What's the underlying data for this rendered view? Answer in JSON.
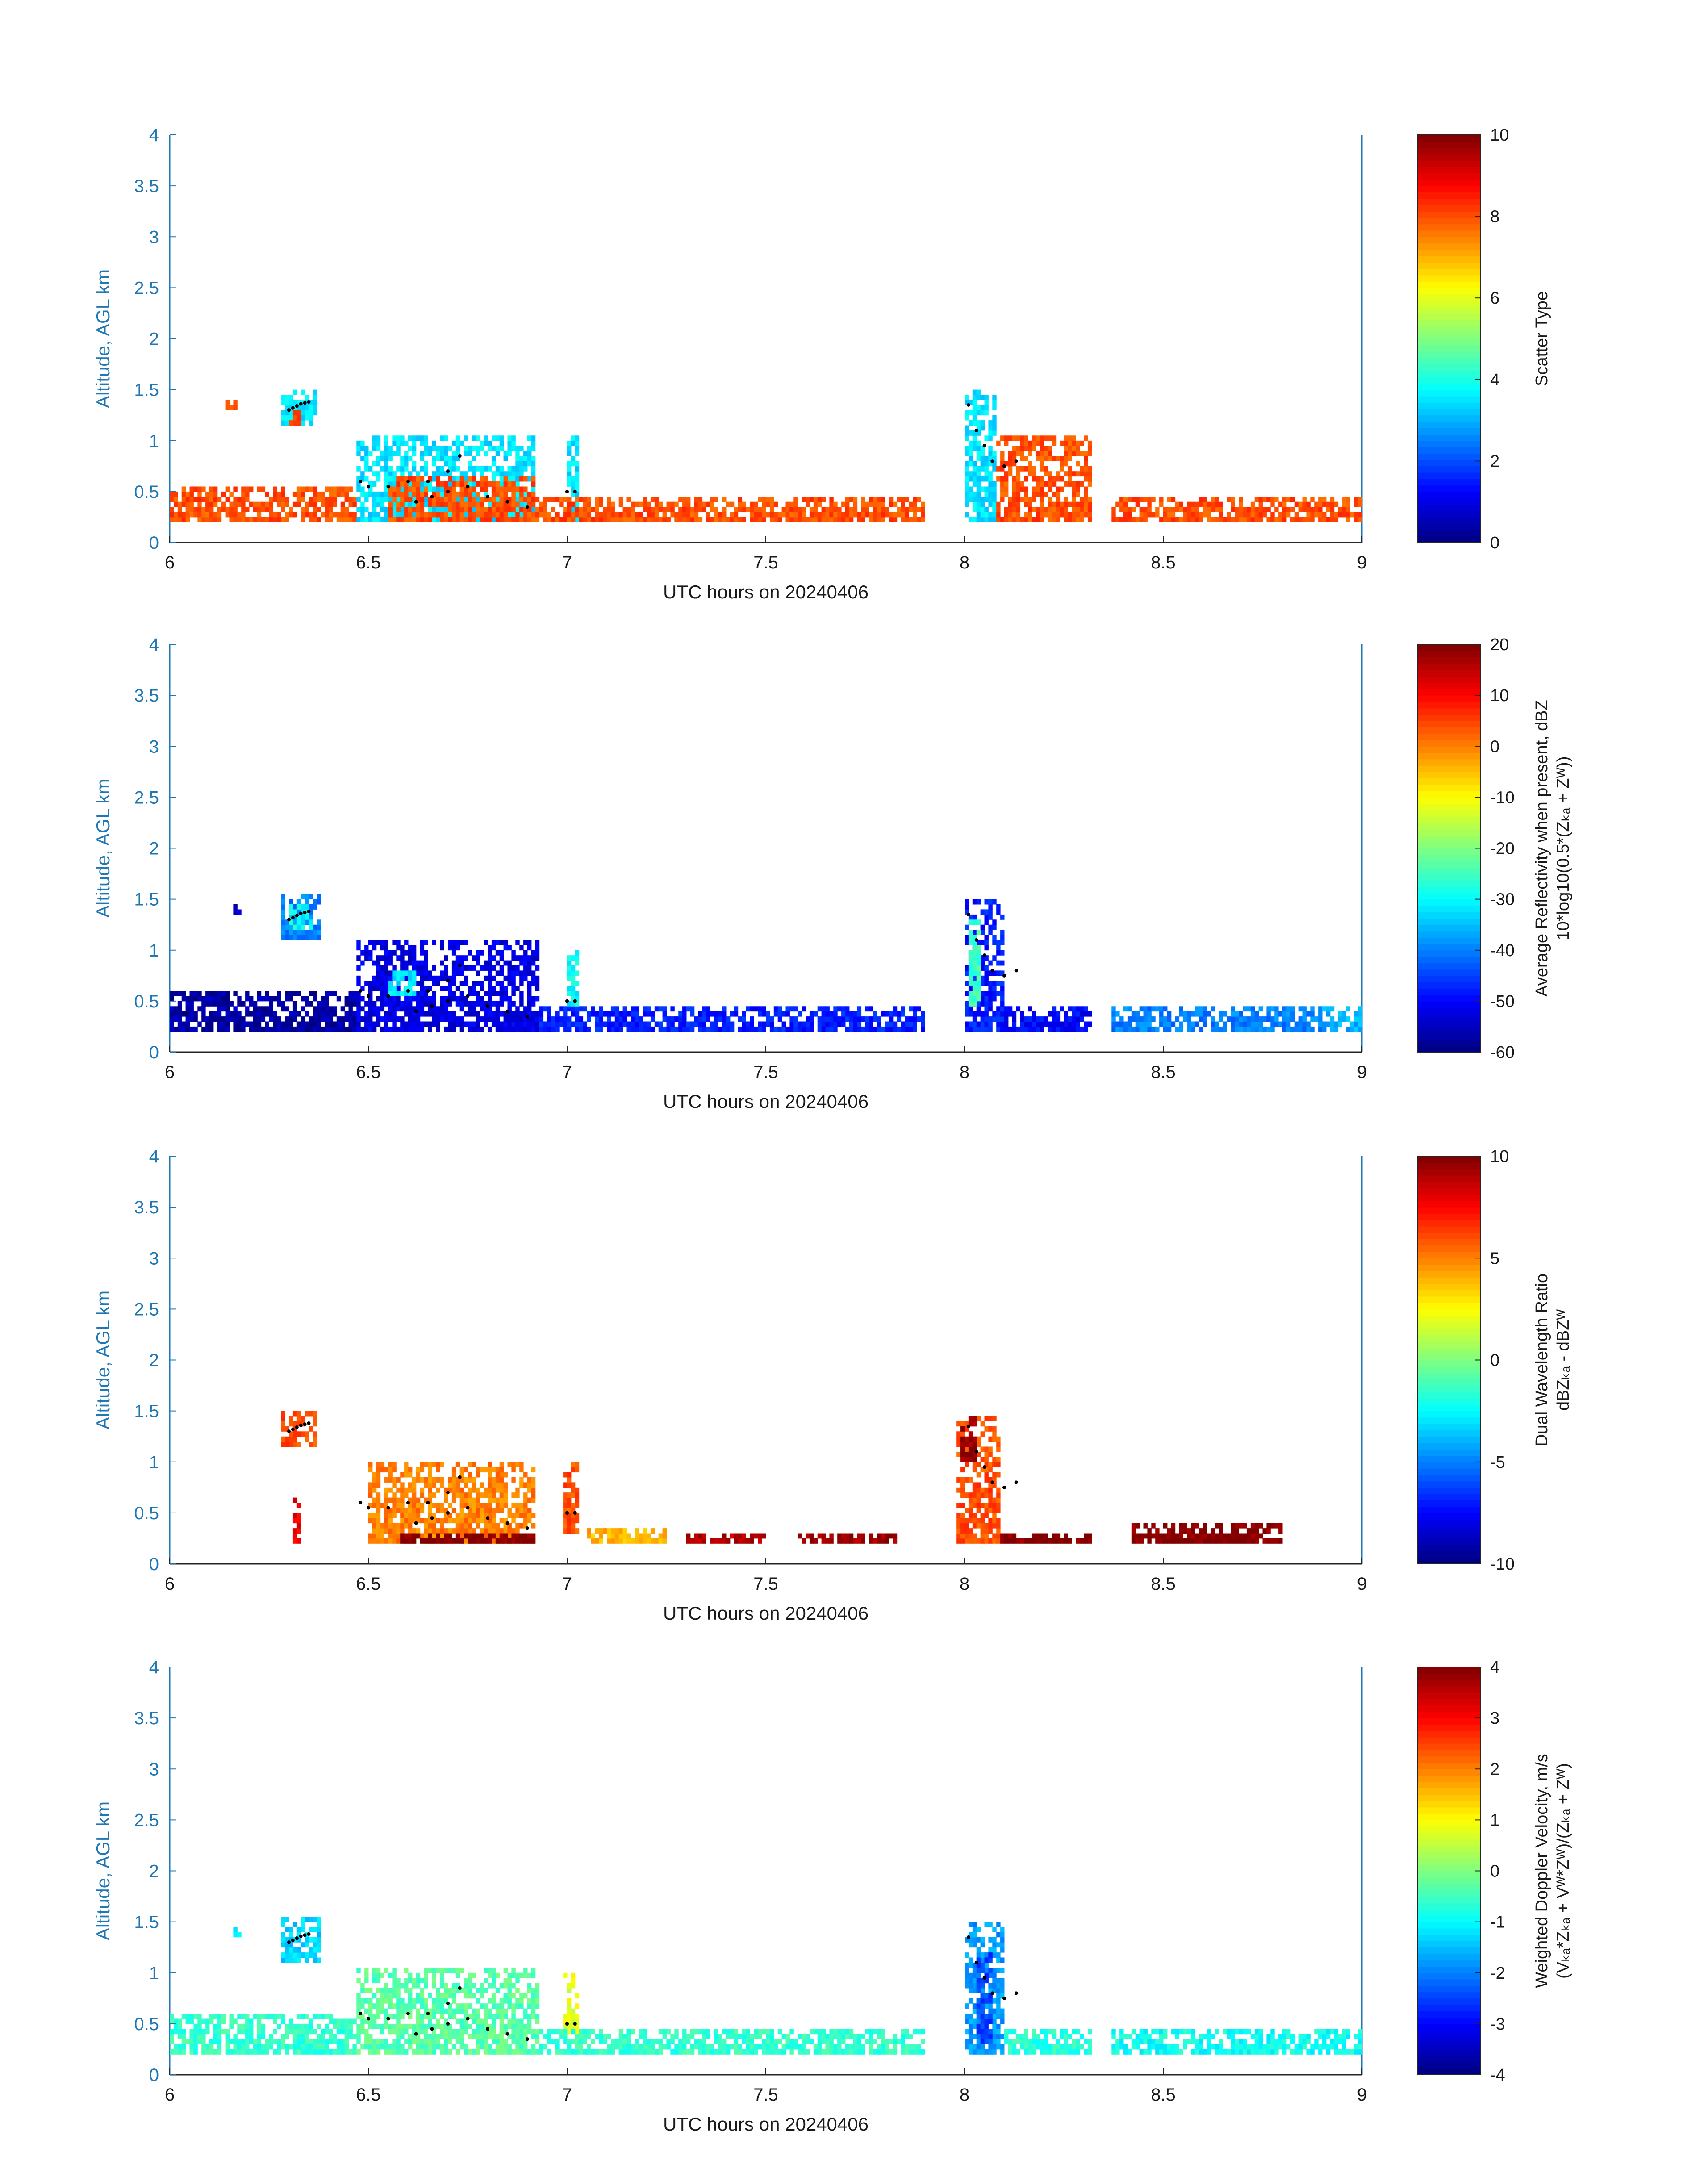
{
  "chart_data": [
    {
      "type": "heatmap",
      "title": "",
      "xlabel": "UTC hours on 20240406",
      "ylabel": "Altitude, AGL km",
      "xlim": [
        6,
        9
      ],
      "ylim": [
        0,
        4
      ],
      "xticks": [
        "6",
        "6.5",
        "7",
        "7.5",
        "8",
        "8.5",
        "9"
      ],
      "yticks": [
        "0",
        "0.5",
        "1",
        "1.5",
        "2",
        "2.5",
        "3",
        "3.5",
        "4"
      ],
      "colorbar": {
        "label_lines": [
          "Scatter Type"
        ],
        "min": 0,
        "max": 10,
        "ticks": [
          "0",
          "2",
          "4",
          "6",
          "8",
          "10"
        ]
      },
      "grid": false,
      "cells": [
        {
          "x": [
            6.0,
            6.47
          ],
          "y": [
            0.2,
            0.55
          ],
          "v": 8
        },
        {
          "x": [
            6.14,
            6.17
          ],
          "y": [
            1.3,
            1.4
          ],
          "v": 8
        },
        {
          "x": [
            6.28,
            6.37
          ],
          "y": [
            1.15,
            1.5
          ],
          "v": 3.5
        },
        {
          "x": [
            6.3,
            6.33
          ],
          "y": [
            1.15,
            1.3
          ],
          "v": 8
        },
        {
          "x": [
            6.47,
            6.92
          ],
          "y": [
            0.2,
            1.05
          ],
          "v": 3.5
        },
        {
          "x": [
            6.55,
            6.92
          ],
          "y": [
            0.2,
            0.65
          ],
          "v": 8
        },
        {
          "x": [
            7.0,
            7.03
          ],
          "y": [
            0.2,
            1.05
          ],
          "v": 3.5
        },
        {
          "x": [
            6.92,
            7.9
          ],
          "y": [
            0.2,
            0.45
          ],
          "v": 8
        },
        {
          "x": [
            8.0,
            8.08
          ],
          "y": [
            0.2,
            1.5
          ],
          "v": 3.5
        },
        {
          "x": [
            8.08,
            8.32
          ],
          "y": [
            0.2,
            1.05
          ],
          "v": 8
        },
        {
          "x": [
            8.37,
            9.0
          ],
          "y": [
            0.2,
            0.45
          ],
          "v": 8
        }
      ],
      "tracks": [
        {
          "x": [
            6.3,
            6.31,
            6.32,
            6.33,
            6.34,
            6.35
          ],
          "y": [
            1.3,
            1.32,
            1.34,
            1.36,
            1.37,
            1.38
          ]
        },
        {
          "x": [
            6.48,
            6.5,
            6.55,
            6.6,
            6.65,
            6.7,
            6.73
          ],
          "y": [
            0.6,
            0.55,
            0.55,
            0.6,
            0.6,
            0.7,
            0.85
          ]
        },
        {
          "x": [
            6.62,
            6.66,
            6.7,
            6.75,
            6.8,
            6.85,
            6.9
          ],
          "y": [
            0.4,
            0.45,
            0.5,
            0.55,
            0.45,
            0.4,
            0.35
          ]
        },
        {
          "x": [
            7.0,
            7.02
          ],
          "y": [
            0.5,
            0.5
          ]
        },
        {
          "x": [
            8.01,
            8.03,
            8.05,
            8.07,
            8.1,
            8.13
          ],
          "y": [
            1.35,
            1.1,
            0.95,
            0.8,
            0.75,
            0.8
          ]
        }
      ]
    },
    {
      "type": "heatmap",
      "title": "",
      "xlabel": "UTC hours on 20240406",
      "ylabel": "Altitude, AGL km",
      "xlim": [
        6,
        9
      ],
      "ylim": [
        0,
        4
      ],
      "xticks": [
        "6",
        "6.5",
        "7",
        "7.5",
        "8",
        "8.5",
        "9"
      ],
      "yticks": [
        "0",
        "0.5",
        "1",
        "1.5",
        "2",
        "2.5",
        "3",
        "3.5",
        "4"
      ],
      "colorbar": {
        "label_lines": [
          "Average Reflectivity when present, dBZ",
          "10*log10(0.5*(Zₖₐ + Zᵂ))"
        ],
        "min": -60,
        "max": 20,
        "ticks": [
          "-60",
          "-50",
          "-40",
          "-30",
          "-20",
          "-10",
          "0",
          "10",
          "20"
        ]
      },
      "grid": false,
      "cells": [
        {
          "x": [
            6.0,
            6.47
          ],
          "y": [
            0.2,
            0.6
          ],
          "v": -57
        },
        {
          "x": [
            6.16,
            6.18
          ],
          "y": [
            1.35,
            1.45
          ],
          "v": -55
        },
        {
          "x": [
            6.28,
            6.38
          ],
          "y": [
            1.1,
            1.55
          ],
          "v": -40
        },
        {
          "x": [
            6.3,
            6.36
          ],
          "y": [
            1.2,
            1.45
          ],
          "v": -30
        },
        {
          "x": [
            6.47,
            6.93
          ],
          "y": [
            0.2,
            1.1
          ],
          "v": -52
        },
        {
          "x": [
            6.55,
            6.62
          ],
          "y": [
            0.55,
            0.8
          ],
          "v": -32
        },
        {
          "x": [
            6.93,
            7.9
          ],
          "y": [
            0.2,
            0.45
          ],
          "v": -48
        },
        {
          "x": [
            7.0,
            7.03
          ],
          "y": [
            0.45,
            1.0
          ],
          "v": -30
        },
        {
          "x": [
            8.0,
            8.1
          ],
          "y": [
            0.2,
            1.5
          ],
          "v": -48
        },
        {
          "x": [
            8.01,
            8.04
          ],
          "y": [
            0.45,
            1.3
          ],
          "v": -25
        },
        {
          "x": [
            8.1,
            8.32
          ],
          "y": [
            0.2,
            0.45
          ],
          "v": -50
        },
        {
          "x": [
            8.37,
            8.9
          ],
          "y": [
            0.2,
            0.45
          ],
          "v": -40
        },
        {
          "x": [
            8.9,
            9.0
          ],
          "y": [
            0.2,
            0.45
          ],
          "v": -36
        }
      ],
      "tracks": [
        {
          "x": [
            6.3,
            6.31,
            6.32,
            6.33,
            6.34,
            6.35
          ],
          "y": [
            1.3,
            1.32,
            1.34,
            1.36,
            1.37,
            1.38
          ]
        },
        {
          "x": [
            6.48,
            6.5,
            6.55,
            6.6,
            6.65,
            6.7,
            6.73
          ],
          "y": [
            0.6,
            0.55,
            0.55,
            0.6,
            0.6,
            0.7,
            0.85
          ]
        },
        {
          "x": [
            6.62,
            6.66,
            6.7,
            6.75,
            6.8,
            6.85,
            6.9
          ],
          "y": [
            0.4,
            0.45,
            0.5,
            0.55,
            0.45,
            0.4,
            0.35
          ]
        },
        {
          "x": [
            7.0,
            7.02
          ],
          "y": [
            0.5,
            0.5
          ]
        },
        {
          "x": [
            8.01,
            8.03,
            8.05,
            8.07,
            8.1,
            8.13
          ],
          "y": [
            1.35,
            1.1,
            0.95,
            0.8,
            0.75,
            0.8
          ]
        }
      ]
    },
    {
      "type": "heatmap",
      "title": "",
      "xlabel": "UTC hours on 20240406",
      "ylabel": "Altitude, AGL km",
      "xlim": [
        6,
        9
      ],
      "ylim": [
        0,
        4
      ],
      "xticks": [
        "6",
        "6.5",
        "7",
        "7.5",
        "8",
        "8.5",
        "9"
      ],
      "yticks": [
        "0",
        "0.5",
        "1",
        "1.5",
        "2",
        "2.5",
        "3",
        "3.5",
        "4"
      ],
      "colorbar": {
        "label_lines": [
          "Dual Wavelength Ratio",
          "dBZₖₐ - dBZᵂ"
        ],
        "min": -10,
        "max": 10,
        "ticks": [
          "-10",
          "-5",
          "0",
          "5",
          "10"
        ]
      },
      "grid": false,
      "cells": [
        {
          "x": [
            6.28,
            6.37
          ],
          "y": [
            1.15,
            1.5
          ],
          "v": 6
        },
        {
          "x": [
            6.31,
            6.33
          ],
          "y": [
            0.2,
            0.65
          ],
          "v": 8
        },
        {
          "x": [
            6.5,
            6.92
          ],
          "y": [
            0.2,
            1.0
          ],
          "v": 5
        },
        {
          "x": [
            6.58,
            6.92
          ],
          "y": [
            0.2,
            0.3
          ],
          "v": 10
        },
        {
          "x": [
            6.99,
            7.03
          ],
          "y": [
            0.3,
            1.0
          ],
          "v": 6
        },
        {
          "x": [
            7.05,
            7.25
          ],
          "y": [
            0.2,
            0.35
          ],
          "v": 4
        },
        {
          "x": [
            7.3,
            7.5
          ],
          "y": [
            0.2,
            0.3
          ],
          "v": 9
        },
        {
          "x": [
            7.58,
            7.83
          ],
          "y": [
            0.2,
            0.3
          ],
          "v": 9.5
        },
        {
          "x": [
            7.98,
            8.09
          ],
          "y": [
            0.2,
            1.45
          ],
          "v": 6
        },
        {
          "x": [
            7.99,
            8.03
          ],
          "y": [
            1.0,
            1.45
          ],
          "v": 9.5
        },
        {
          "x": [
            8.09,
            8.32
          ],
          "y": [
            0.2,
            0.3
          ],
          "v": 10
        },
        {
          "x": [
            8.42,
            8.8
          ],
          "y": [
            0.2,
            0.4
          ],
          "v": 10
        }
      ],
      "tracks": [
        {
          "x": [
            6.3,
            6.31,
            6.32,
            6.33,
            6.34,
            6.35
          ],
          "y": [
            1.3,
            1.32,
            1.34,
            1.36,
            1.37,
            1.38
          ]
        },
        {
          "x": [
            6.48,
            6.5,
            6.55,
            6.6,
            6.65,
            6.7,
            6.73
          ],
          "y": [
            0.6,
            0.55,
            0.55,
            0.6,
            0.6,
            0.7,
            0.85
          ]
        },
        {
          "x": [
            6.62,
            6.66,
            6.7,
            6.75,
            6.8,
            6.85,
            6.9
          ],
          "y": [
            0.4,
            0.45,
            0.5,
            0.55,
            0.45,
            0.4,
            0.35
          ]
        },
        {
          "x": [
            7.0,
            7.02
          ],
          "y": [
            0.5,
            0.5
          ]
        },
        {
          "x": [
            8.01,
            8.03,
            8.05,
            8.07,
            8.1,
            8.13
          ],
          "y": [
            1.35,
            1.1,
            0.95,
            0.8,
            0.75,
            0.8
          ]
        }
      ]
    },
    {
      "type": "heatmap",
      "title": "",
      "xlabel": "UTC hours on 20240406",
      "ylabel": "Altitude, AGL km",
      "xlim": [
        6,
        9
      ],
      "ylim": [
        0,
        4
      ],
      "xticks": [
        "6",
        "6.5",
        "7",
        "7.5",
        "8",
        "8.5",
        "9"
      ],
      "yticks": [
        "0",
        "0.5",
        "1",
        "1.5",
        "2",
        "2.5",
        "3",
        "3.5",
        "4"
      ],
      "colorbar": {
        "label_lines": [
          "Weighted Doppler Velocity, m/s",
          "(Vₖₐ*Zₖₐ + Vᵂ*Zᵂ)/(Zₖₐ + Zᵂ)"
        ],
        "min": -4,
        "max": 4,
        "ticks": [
          "-4",
          "-3",
          "-2",
          "-1",
          "0",
          "1",
          "2",
          "3",
          "4"
        ]
      },
      "grid": false,
      "cells": [
        {
          "x": [
            6.0,
            6.47
          ],
          "y": [
            0.2,
            0.6
          ],
          "v": -0.6
        },
        {
          "x": [
            6.16,
            6.18
          ],
          "y": [
            1.35,
            1.45
          ],
          "v": -1.2
        },
        {
          "x": [
            6.28,
            6.38
          ],
          "y": [
            1.1,
            1.55
          ],
          "v": -1.3
        },
        {
          "x": [
            6.47,
            6.93
          ],
          "y": [
            0.2,
            1.05
          ],
          "v": -0.3
        },
        {
          "x": [
            6.99,
            7.03
          ],
          "y": [
            0.4,
            1.0
          ],
          "v": 0.8
        },
        {
          "x": [
            6.93,
            7.9
          ],
          "y": [
            0.2,
            0.45
          ],
          "v": -0.6
        },
        {
          "x": [
            8.0,
            8.1
          ],
          "y": [
            0.2,
            1.5
          ],
          "v": -1.8
        },
        {
          "x": [
            8.03,
            8.07
          ],
          "y": [
            0.3,
            1.2
          ],
          "v": -2.5
        },
        {
          "x": [
            8.1,
            8.32
          ],
          "y": [
            0.2,
            0.45
          ],
          "v": -0.7
        },
        {
          "x": [
            8.37,
            9.0
          ],
          "y": [
            0.2,
            0.45
          ],
          "v": -0.9
        }
      ],
      "tracks": [
        {
          "x": [
            6.3,
            6.31,
            6.32,
            6.33,
            6.34,
            6.35
          ],
          "y": [
            1.3,
            1.32,
            1.34,
            1.36,
            1.37,
            1.38
          ]
        },
        {
          "x": [
            6.48,
            6.5,
            6.55,
            6.6,
            6.65,
            6.7,
            6.73
          ],
          "y": [
            0.6,
            0.55,
            0.55,
            0.6,
            0.6,
            0.7,
            0.85
          ]
        },
        {
          "x": [
            6.62,
            6.66,
            6.7,
            6.75,
            6.8,
            6.85,
            6.9
          ],
          "y": [
            0.4,
            0.45,
            0.5,
            0.55,
            0.45,
            0.4,
            0.35
          ]
        },
        {
          "x": [
            7.0,
            7.02
          ],
          "y": [
            0.5,
            0.5
          ]
        },
        {
          "x": [
            8.01,
            8.03,
            8.05,
            8.07,
            8.1,
            8.13
          ],
          "y": [
            1.35,
            1.1,
            0.95,
            0.8,
            0.75,
            0.8
          ]
        }
      ]
    }
  ]
}
